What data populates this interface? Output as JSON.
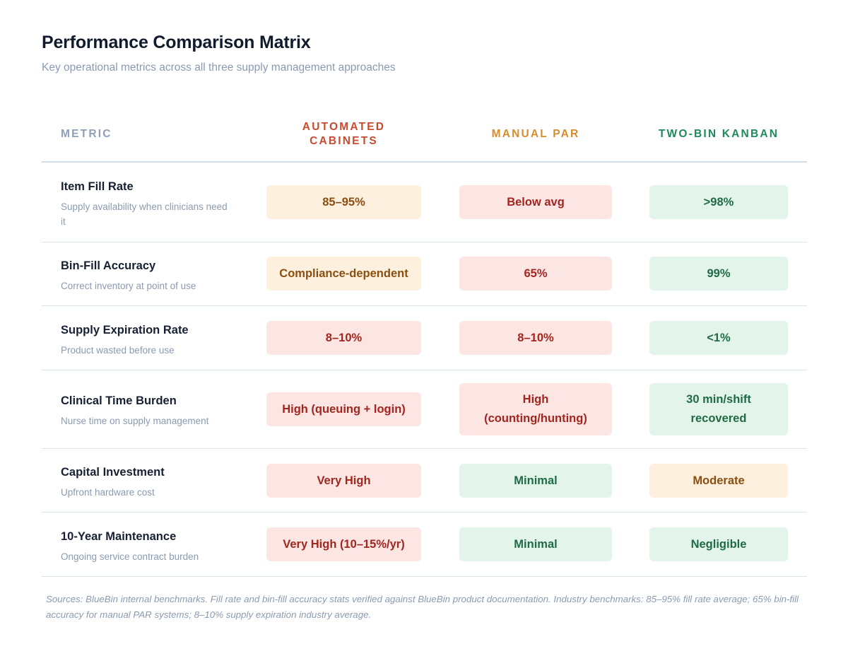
{
  "title": "Performance Comparison Matrix",
  "subtitle": "Key operational metrics across all three supply management approaches",
  "columns": {
    "metric": "METRIC",
    "automated": "AUTOMATED CABINETS",
    "manual_par": "MANUAL PAR",
    "kanban": "TWO-BIN KANBAN"
  },
  "colors": {
    "automated": "#c94a2f",
    "manual_par": "#d88c2e",
    "kanban": "#1f8a5b",
    "good_bg": "#e3f4ea",
    "bad_bg": "#fce6e4",
    "mid_bg": "#fdf0de"
  },
  "rows": [
    {
      "name": "Item Fill Rate",
      "description": "Supply availability when clinicians need it",
      "automated": {
        "value": "85–95%",
        "status": "mid"
      },
      "manual_par": {
        "value": "Below avg",
        "status": "bad"
      },
      "kanban": {
        "value": ">98%",
        "status": "good"
      }
    },
    {
      "name": "Bin-Fill Accuracy",
      "description": "Correct inventory at point of use",
      "automated": {
        "value": "Compliance-dependent",
        "status": "mid"
      },
      "manual_par": {
        "value": "65%",
        "status": "bad"
      },
      "kanban": {
        "value": "99%",
        "status": "good"
      }
    },
    {
      "name": "Supply Expiration Rate",
      "description": "Product wasted before use",
      "automated": {
        "value": "8–10%",
        "status": "bad"
      },
      "manual_par": {
        "value": "8–10%",
        "status": "bad"
      },
      "kanban": {
        "value": "<1%",
        "status": "good"
      }
    },
    {
      "name": "Clinical Time Burden",
      "description": "Nurse time on supply management",
      "automated": {
        "value": "High (queuing + login)",
        "status": "bad"
      },
      "manual_par": {
        "value": "High (counting/hunting)",
        "status": "bad"
      },
      "kanban": {
        "value": "30 min/shift recovered",
        "status": "good"
      }
    },
    {
      "name": "Capital Investment",
      "description": "Upfront hardware cost",
      "automated": {
        "value": "Very High",
        "status": "bad"
      },
      "manual_par": {
        "value": "Minimal",
        "status": "good"
      },
      "kanban": {
        "value": "Moderate",
        "status": "mid"
      }
    },
    {
      "name": "10-Year Maintenance",
      "description": "Ongoing service contract burden",
      "automated": {
        "value": "Very High (10–15%/yr)",
        "status": "bad"
      },
      "manual_par": {
        "value": "Minimal",
        "status": "good"
      },
      "kanban": {
        "value": "Negligible",
        "status": "good"
      }
    }
  ],
  "sources": "Sources: BlueBin internal benchmarks. Fill rate and bin-fill accuracy stats verified against BlueBin product documentation. Industry benchmarks: 85–95% fill rate average; 65% bin-fill accuracy for manual PAR systems; 8–10% supply expiration industry average."
}
